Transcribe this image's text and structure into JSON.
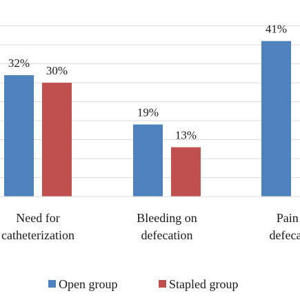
{
  "chart_data": {
    "type": "bar",
    "categories": [
      [
        "Need for",
        "catheterization"
      ],
      [
        "Bleeding on",
        "defecation"
      ],
      [
        "Pain on",
        "defecation"
      ]
    ],
    "series": [
      {
        "name": "Open group",
        "color": "#4f81bd",
        "values": [
          32,
          19,
          41
        ],
        "labels": [
          "32%",
          "19%",
          "41%"
        ]
      },
      {
        "name": "Stapled group",
        "color": "#c0504d",
        "values": [
          30,
          13,
          null
        ],
        "labels": [
          "30%",
          "13%",
          ""
        ]
      }
    ],
    "unit": "%",
    "ylim": [
      0,
      45
    ],
    "grid": true,
    "gridline_color": "#d9d9d9",
    "legend_position": "bottom"
  }
}
